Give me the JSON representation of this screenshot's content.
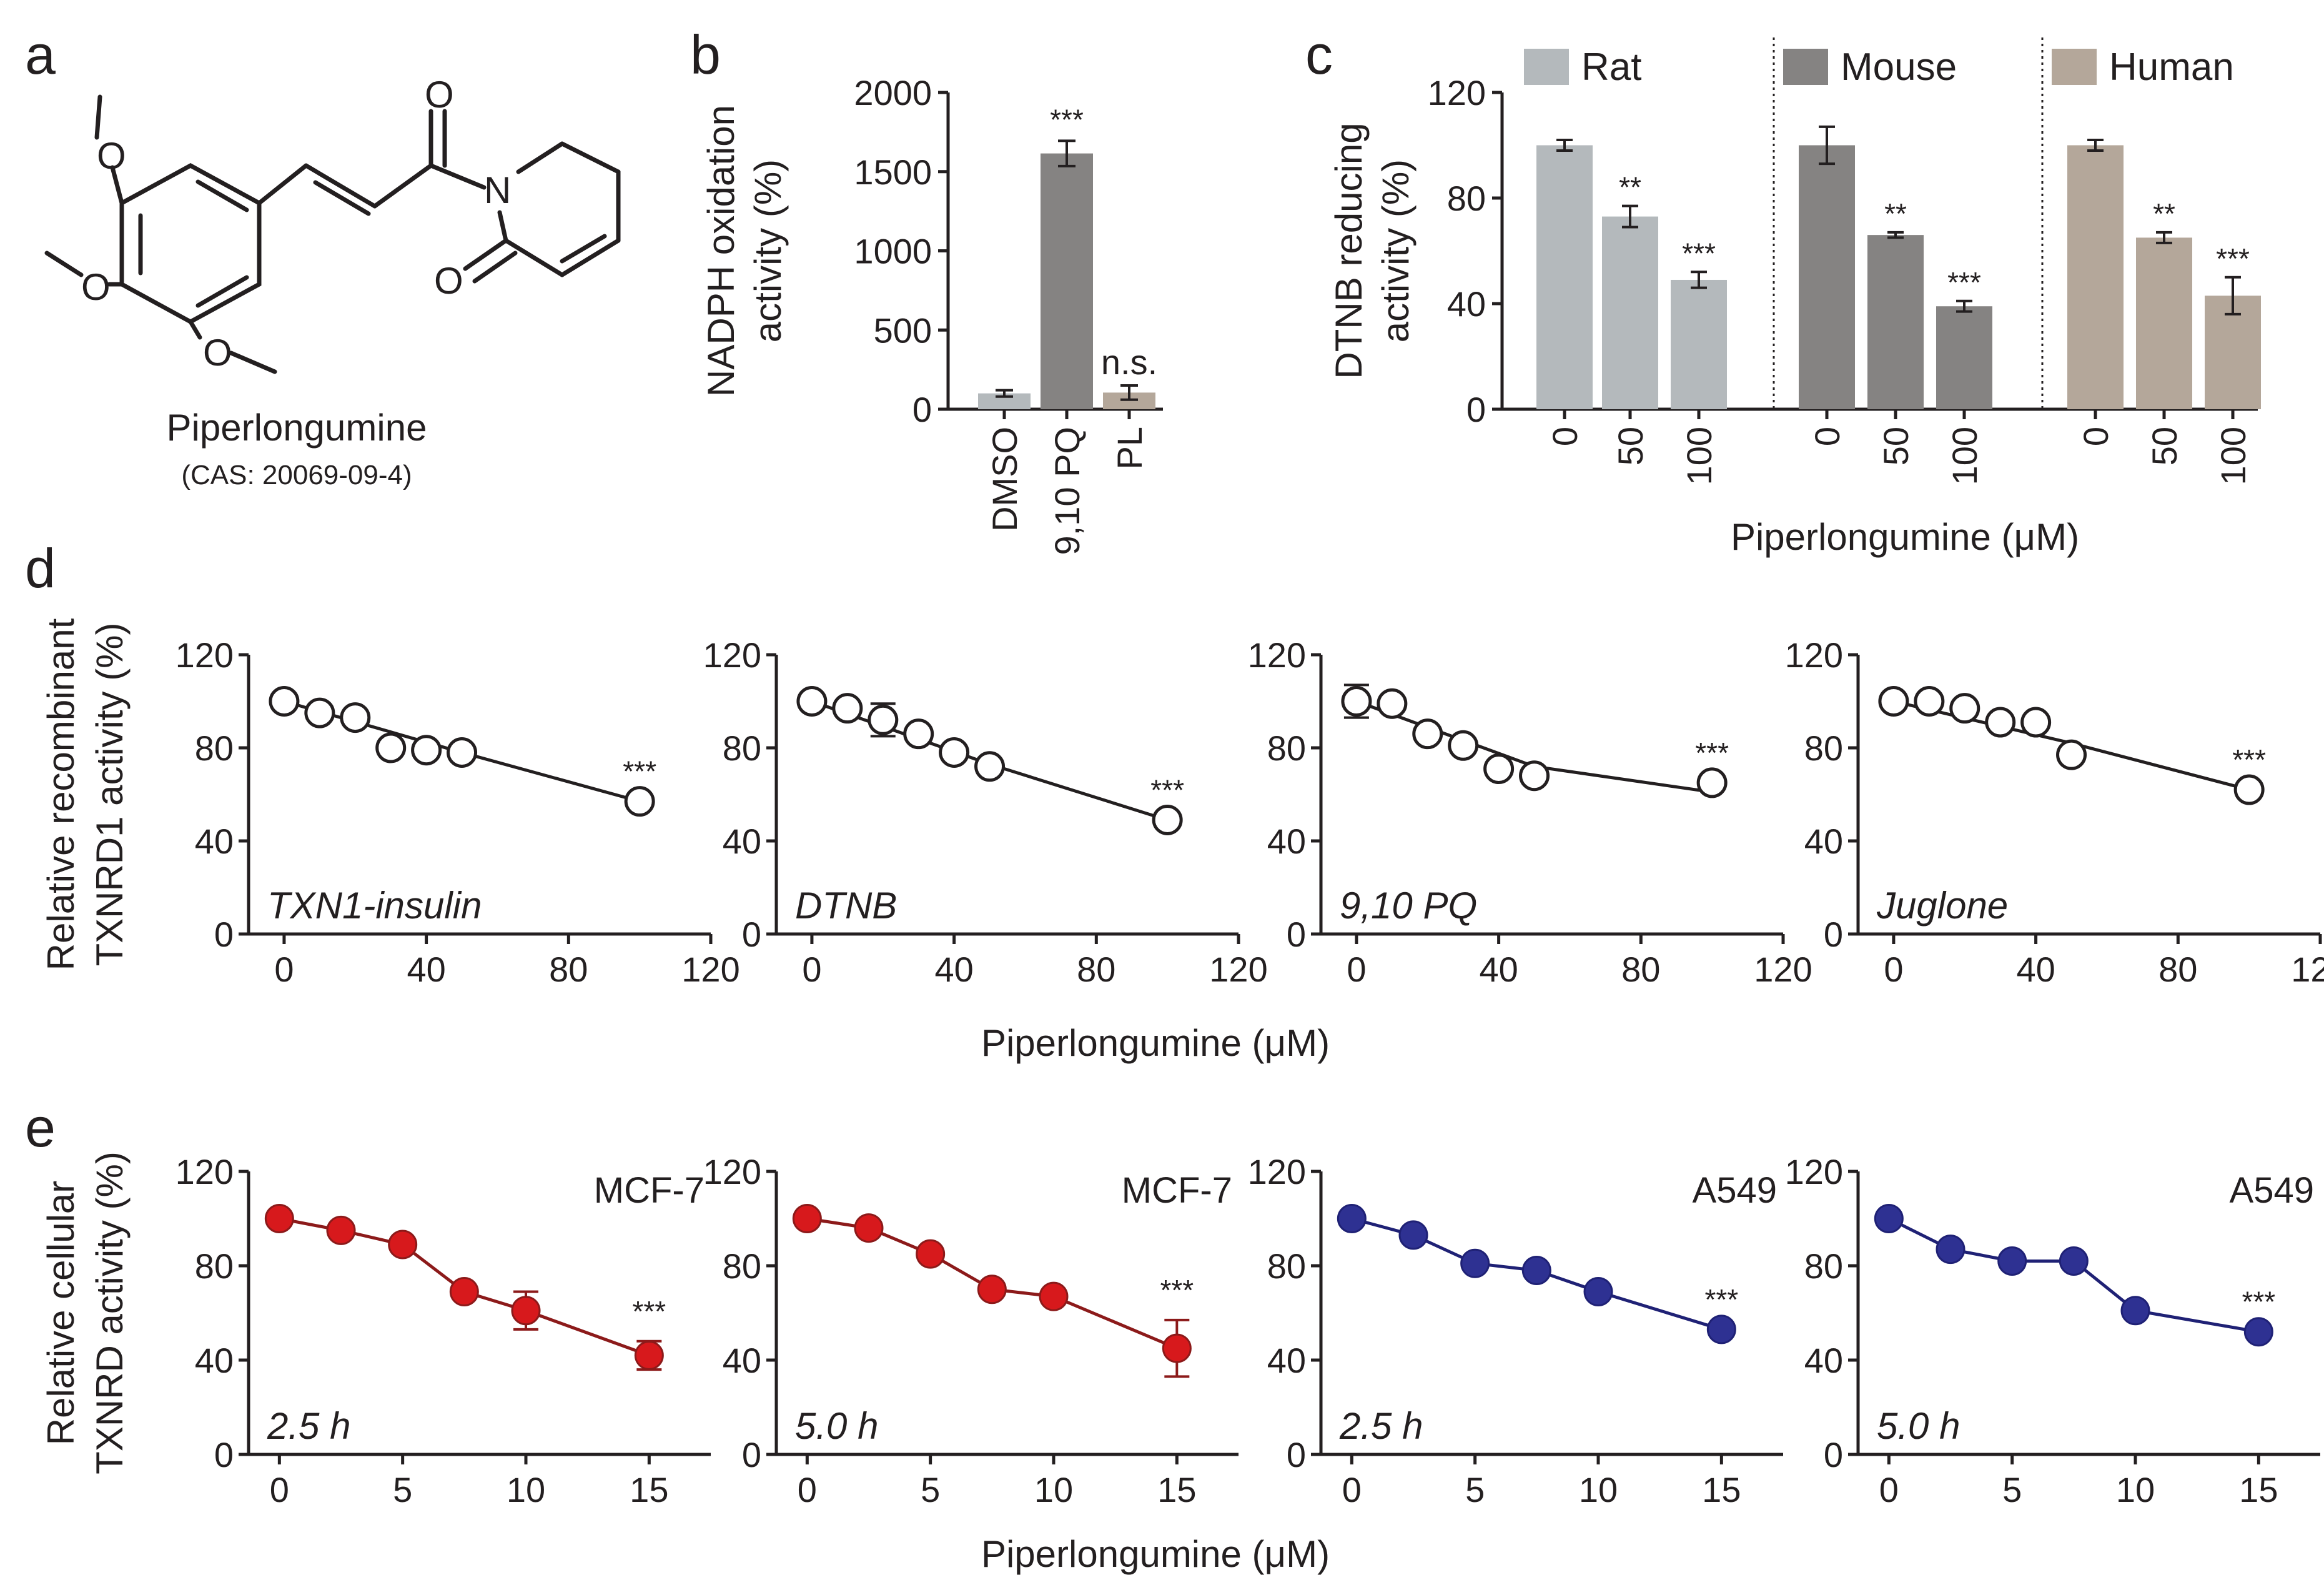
{
  "figure": {
    "panel_labels": [
      "a",
      "b",
      "c",
      "d",
      "e"
    ]
  },
  "molecule": {
    "name": "Piperlongumine",
    "cas": "(CAS: 20069-09-4)",
    "atom_O": "O",
    "atom_N": "N"
  },
  "chart_data": [
    {
      "id": "b",
      "type": "bar",
      "ylabel_lines": [
        "NADPH oxidation",
        "activity (%)"
      ],
      "ylim": [
        0,
        2000
      ],
      "yticks": [
        "0",
        "500",
        "1000",
        "1500",
        "2000"
      ],
      "categories": [
        "DMSO",
        "9,10 PQ",
        "PL"
      ],
      "values": [
        100,
        1615,
        105
      ],
      "errors": [
        20,
        80,
        45
      ],
      "colors": [
        "#b4b9bc",
        "#858382",
        "#b4a79a"
      ],
      "significance": [
        "",
        "***",
        "n.s."
      ]
    },
    {
      "id": "c",
      "type": "bar",
      "ylabel_lines": [
        "DTNB reducing",
        "activity (%)"
      ],
      "xlabel": "Piperlongumine (μM)",
      "ylim": [
        0,
        120
      ],
      "yticks": [
        "0",
        "40",
        "80",
        "120"
      ],
      "categories": [
        "0",
        "50",
        "100"
      ],
      "series": [
        {
          "name": "Rat",
          "color": "#b4b9bc",
          "values": [
            100,
            73,
            49
          ],
          "errors": [
            2,
            4,
            3
          ],
          "significance": [
            "",
            "**",
            "***"
          ]
        },
        {
          "name": "Mouse",
          "color": "#858382",
          "values": [
            100,
            66,
            39
          ],
          "errors": [
            7,
            1,
            2
          ],
          "significance": [
            "",
            "**",
            "***"
          ]
        },
        {
          "name": "Human",
          "color": "#b4a79a",
          "values": [
            100,
            65,
            43
          ],
          "errors": [
            2,
            2,
            7
          ],
          "significance": [
            "",
            "**",
            "***"
          ]
        }
      ]
    },
    {
      "id": "d",
      "type": "scatter",
      "ylabel_lines": [
        "Relative recombinant",
        "TXNRD1 activity (%)"
      ],
      "xlabel": "Piperlongumine (μM)",
      "xlim": [
        -10,
        120
      ],
      "ylim": [
        0,
        120
      ],
      "xticks": [
        "0",
        "40",
        "80",
        "120"
      ],
      "yticks": [
        "0",
        "40",
        "80",
        "120"
      ],
      "panels": [
        {
          "label": "TXN1-insulin",
          "x": [
            0,
            10,
            20,
            30,
            40,
            50,
            100
          ],
          "y": [
            100,
            95,
            93,
            80,
            79,
            78,
            57
          ],
          "err": [
            0,
            0,
            0,
            0,
            0,
            0,
            0
          ],
          "fit": [
            [
              0,
              100
            ],
            [
              50,
              78
            ],
            [
              100,
              57
            ]
          ],
          "sig": "***"
        },
        {
          "label": "DTNB",
          "x": [
            0,
            10,
            20,
            30,
            40,
            50,
            100
          ],
          "y": [
            100,
            97,
            92,
            86,
            78,
            72,
            49
          ],
          "err": [
            0,
            0,
            7,
            0,
            0,
            0,
            0
          ],
          "fit": [
            [
              0,
              100
            ],
            [
              50,
              73
            ],
            [
              100,
              49
            ]
          ],
          "sig": "***"
        },
        {
          "label": "9,10 PQ",
          "x": [
            0,
            10,
            20,
            30,
            40,
            50,
            100
          ],
          "y": [
            100,
            99,
            86,
            81,
            71,
            68,
            65
          ],
          "err": [
            7,
            0,
            0,
            0,
            0,
            0,
            0
          ],
          "fit": [
            [
              0,
              100
            ],
            [
              50,
              72
            ],
            [
              100,
              61
            ]
          ],
          "sig": "***"
        },
        {
          "label": "Juglone",
          "x": [
            0,
            10,
            20,
            30,
            40,
            50,
            100
          ],
          "y": [
            100,
            100,
            97,
            91,
            91,
            77,
            62
          ],
          "err": [
            0,
            0,
            0,
            0,
            0,
            0,
            0
          ],
          "fit": [
            [
              0,
              100
            ],
            [
              50,
              82
            ],
            [
              100,
              62
            ]
          ],
          "sig": "***"
        }
      ]
    },
    {
      "id": "e",
      "type": "scatter",
      "ylabel_lines": [
        "Relative cellular",
        "TXNRD activity (%)"
      ],
      "xlabel": "Piperlongumine (μM)",
      "xlim": [
        -1.25,
        17.5
      ],
      "ylim": [
        0,
        120
      ],
      "xticks": [
        "0",
        "5",
        "10",
        "15"
      ],
      "yticks": [
        "0",
        "40",
        "80",
        "120"
      ],
      "panels": [
        {
          "cell": "MCF-7",
          "time": "2.5 h",
          "color": "#d7191c",
          "line": "#8c1a1a",
          "x": [
            0,
            2.5,
            5,
            7.5,
            10,
            15
          ],
          "y": [
            100,
            95,
            89,
            69,
            61,
            42
          ],
          "err": [
            0,
            0,
            0,
            0,
            8,
            6
          ],
          "sig": "***"
        },
        {
          "cell": "MCF-7",
          "time": "5.0 h",
          "color": "#d7191c",
          "line": "#8c1a1a",
          "x": [
            0,
            2.5,
            5,
            7.5,
            10,
            15
          ],
          "y": [
            100,
            96,
            85,
            70,
            67,
            45
          ],
          "err": [
            0,
            0,
            0,
            0,
            0,
            12
          ],
          "sig": "***"
        },
        {
          "cell": "A549",
          "time": "2.5 h",
          "color": "#2e3192",
          "line": "#1f2175",
          "x": [
            0,
            2.5,
            5,
            7.5,
            10,
            15
          ],
          "y": [
            100,
            93,
            81,
            78,
            69,
            53
          ],
          "err": [
            0,
            0,
            0,
            0,
            0,
            0
          ],
          "sig": "***"
        },
        {
          "cell": "A549",
          "time": "5.0 h",
          "color": "#2e3192",
          "line": "#1f2175",
          "x": [
            0,
            2.5,
            5,
            7.5,
            10,
            15
          ],
          "y": [
            100,
            87,
            82,
            82,
            61,
            52
          ],
          "err": [
            0,
            0,
            0,
            0,
            0,
            0
          ],
          "sig": "***"
        }
      ]
    }
  ]
}
